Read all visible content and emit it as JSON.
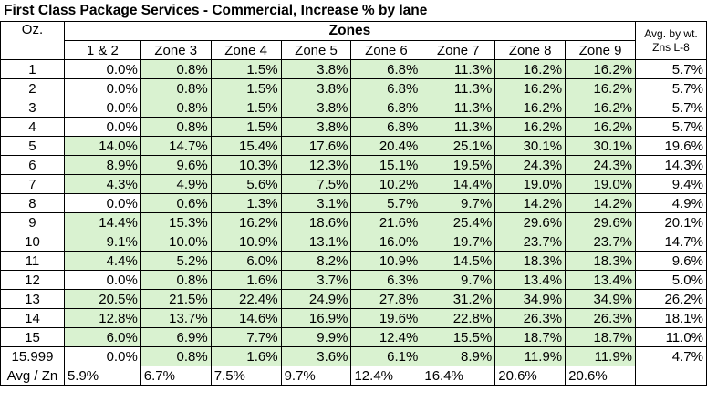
{
  "title": "First Class Package Services - Commercial, Increase % by lane",
  "headers": {
    "oz": "Oz.",
    "zones": "Zones",
    "avg_line1": "Avg.  by wt.",
    "avg_line2": "Zns L-8",
    "zone_labels": [
      "1 & 2",
      "Zone 3",
      "Zone 4",
      "Zone 5",
      "Zone 6",
      "Zone 7",
      "Zone 8",
      "Zone 9"
    ]
  },
  "colors": {
    "green": "#d9f2d0",
    "white": "#ffffff",
    "border": "#000000"
  },
  "rows": [
    {
      "oz": "1",
      "values": [
        "0.0%",
        "0.8%",
        "1.5%",
        "3.8%",
        "6.8%",
        "11.3%",
        "16.2%",
        "16.2%"
      ],
      "avg": "5.7%",
      "green_first": false
    },
    {
      "oz": "2",
      "values": [
        "0.0%",
        "0.8%",
        "1.5%",
        "3.8%",
        "6.8%",
        "11.3%",
        "16.2%",
        "16.2%"
      ],
      "avg": "5.7%",
      "green_first": false
    },
    {
      "oz": "3",
      "values": [
        "0.0%",
        "0.8%",
        "1.5%",
        "3.8%",
        "6.8%",
        "11.3%",
        "16.2%",
        "16.2%"
      ],
      "avg": "5.7%",
      "green_first": false
    },
    {
      "oz": "4",
      "values": [
        "0.0%",
        "0.8%",
        "1.5%",
        "3.8%",
        "6.8%",
        "11.3%",
        "16.2%",
        "16.2%"
      ],
      "avg": "5.7%",
      "green_first": false
    },
    {
      "oz": "5",
      "values": [
        "14.0%",
        "14.7%",
        "15.4%",
        "17.6%",
        "20.4%",
        "25.1%",
        "30.1%",
        "30.1%"
      ],
      "avg": "19.6%",
      "green_first": true
    },
    {
      "oz": "6",
      "values": [
        "8.9%",
        "9.6%",
        "10.3%",
        "12.3%",
        "15.1%",
        "19.5%",
        "24.3%",
        "24.3%"
      ],
      "avg": "14.3%",
      "green_first": true
    },
    {
      "oz": "7",
      "values": [
        "4.3%",
        "4.9%",
        "5.6%",
        "7.5%",
        "10.2%",
        "14.4%",
        "19.0%",
        "19.0%"
      ],
      "avg": "9.4%",
      "green_first": true
    },
    {
      "oz": "8",
      "values": [
        "0.0%",
        "0.6%",
        "1.3%",
        "3.1%",
        "5.7%",
        "9.7%",
        "14.2%",
        "14.2%"
      ],
      "avg": "4.9%",
      "green_first": false
    },
    {
      "oz": "9",
      "values": [
        "14.4%",
        "15.3%",
        "16.2%",
        "18.6%",
        "21.6%",
        "25.4%",
        "29.6%",
        "29.6%"
      ],
      "avg": "20.1%",
      "green_first": true
    },
    {
      "oz": "10",
      "values": [
        "9.1%",
        "10.0%",
        "10.9%",
        "13.1%",
        "16.0%",
        "19.7%",
        "23.7%",
        "23.7%"
      ],
      "avg": "14.7%",
      "green_first": true
    },
    {
      "oz": "11",
      "values": [
        "4.4%",
        "5.2%",
        "6.0%",
        "8.2%",
        "10.9%",
        "14.5%",
        "18.3%",
        "18.3%"
      ],
      "avg": "9.6%",
      "green_first": true
    },
    {
      "oz": "12",
      "values": [
        "0.0%",
        "0.8%",
        "1.6%",
        "3.7%",
        "6.3%",
        "9.7%",
        "13.4%",
        "13.4%"
      ],
      "avg": "5.0%",
      "green_first": false
    },
    {
      "oz": "13",
      "values": [
        "20.5%",
        "21.5%",
        "22.4%",
        "24.9%",
        "27.8%",
        "31.2%",
        "34.9%",
        "34.9%"
      ],
      "avg": "26.2%",
      "green_first": true
    },
    {
      "oz": "14",
      "values": [
        "12.8%",
        "13.7%",
        "14.6%",
        "16.9%",
        "19.6%",
        "22.8%",
        "26.3%",
        "26.3%"
      ],
      "avg": "18.1%",
      "green_first": true
    },
    {
      "oz": "15",
      "values": [
        "6.0%",
        "6.9%",
        "7.7%",
        "9.9%",
        "12.4%",
        "15.5%",
        "18.7%",
        "18.7%"
      ],
      "avg": "11.0%",
      "green_first": true
    },
    {
      "oz": "15.999",
      "values": [
        "0.0%",
        "0.8%",
        "1.6%",
        "3.6%",
        "6.1%",
        "8.9%",
        "11.9%",
        "11.9%"
      ],
      "avg": "4.7%",
      "green_first": false
    }
  ],
  "footer": {
    "label": "Avg / Zn",
    "values": [
      "5.9%",
      "6.7%",
      "7.5%",
      "9.7%",
      "12.4%",
      "16.4%",
      "20.6%",
      "20.6%"
    ],
    "avg": ""
  }
}
